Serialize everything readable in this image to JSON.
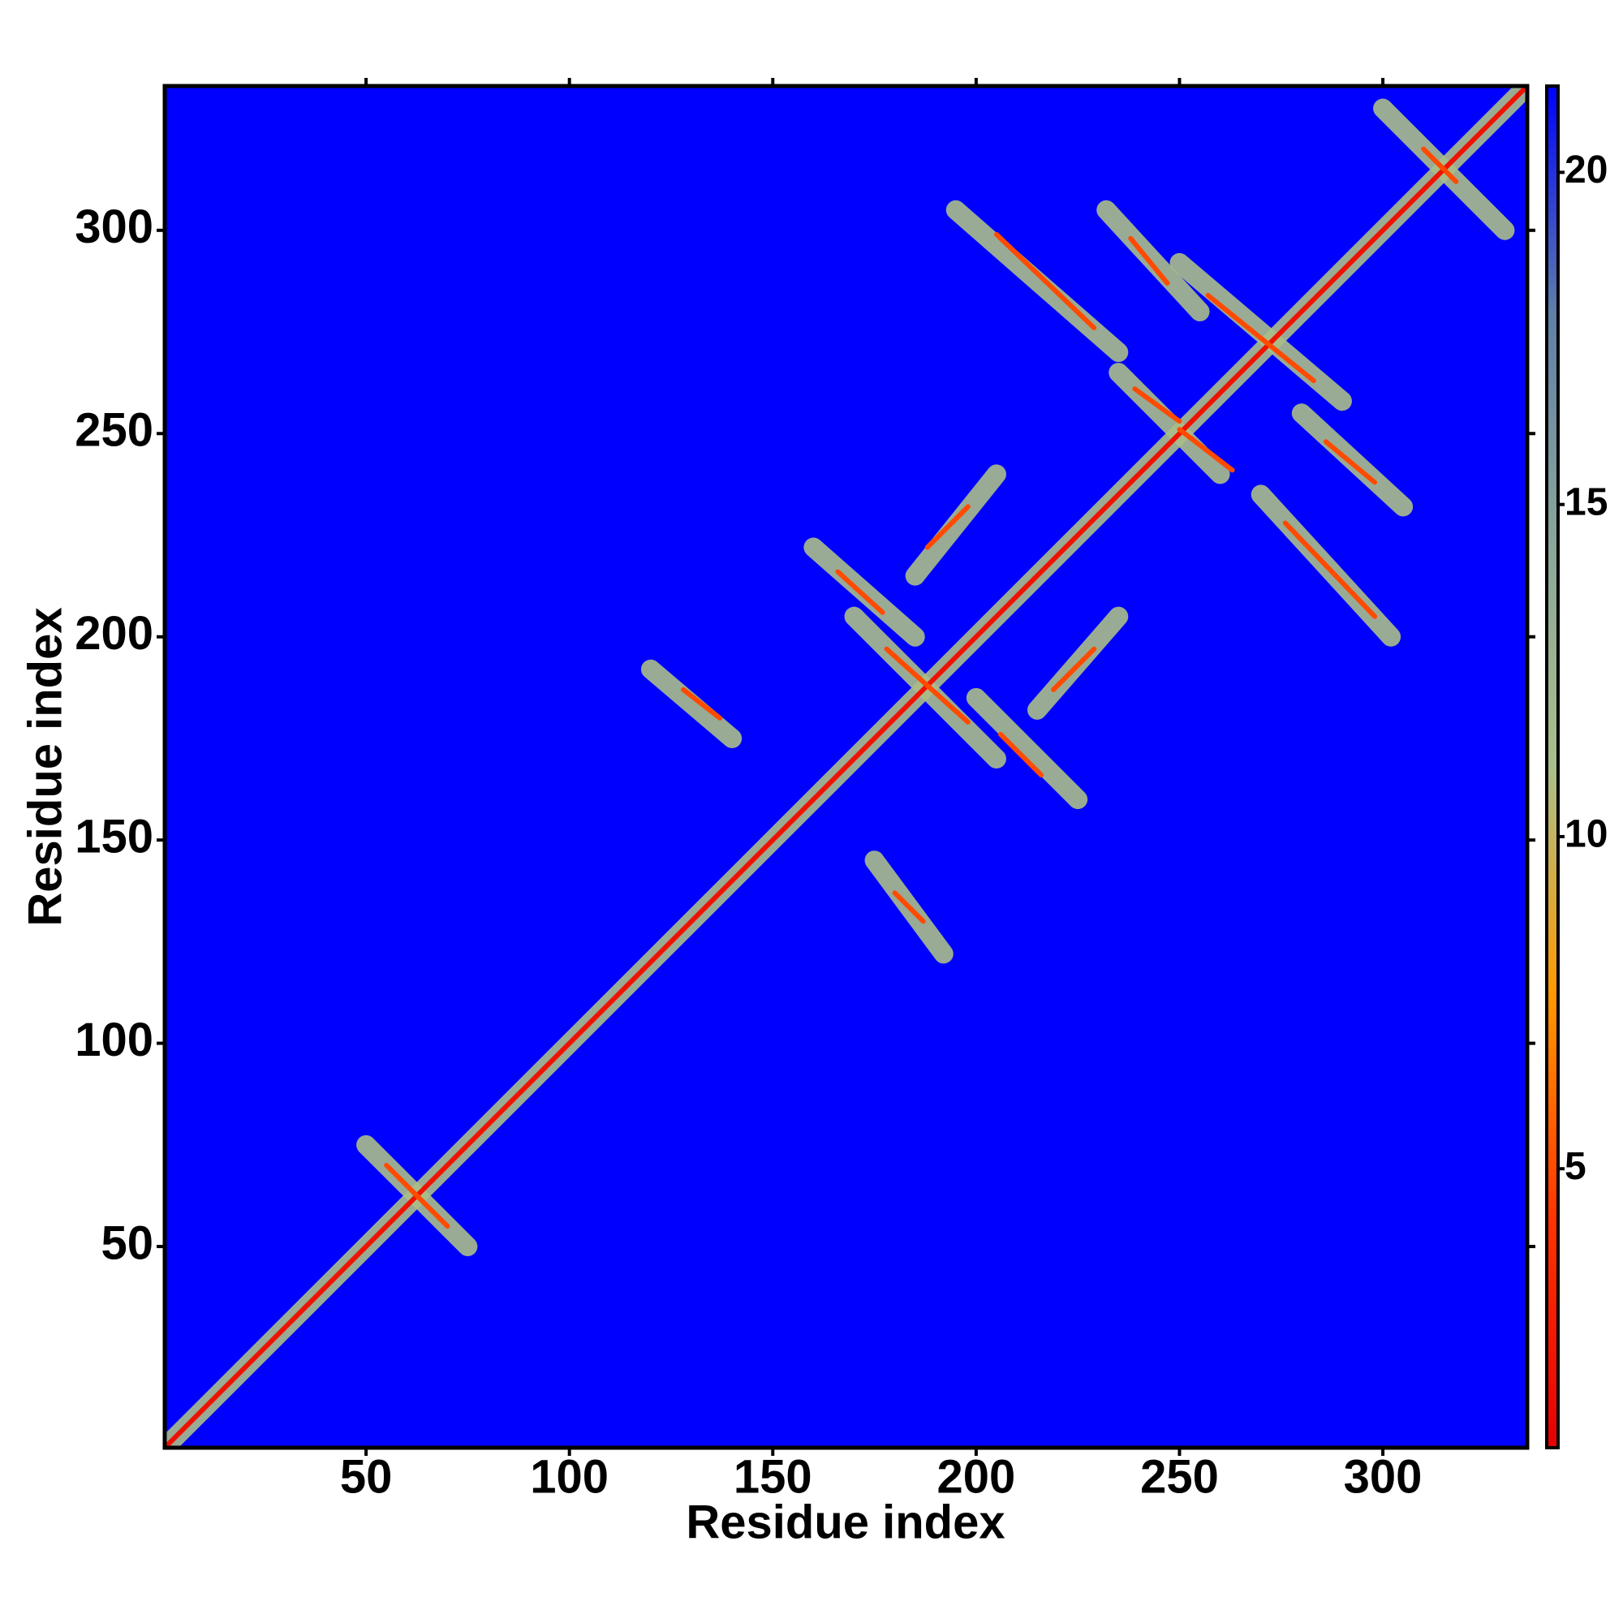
{
  "chart_data": {
    "type": "heatmap",
    "xlabel": "Residue index",
    "ylabel": "Residue index",
    "xlim": [
      0.5,
      335.5
    ],
    "ylim": [
      0.5,
      335.5
    ],
    "xticks": [
      50,
      100,
      150,
      200,
      250,
      300
    ],
    "yticks": [
      50,
      100,
      150,
      200,
      250,
      300
    ],
    "clim": [
      0.8,
      21.3
    ],
    "cticks": [
      5,
      10,
      15,
      20
    ],
    "colors": [
      "#e60000",
      "#ff3300",
      "#ff9900",
      "#a9bf8a",
      "#8aa69a",
      "#5f7fa8",
      "#0000ff"
    ],
    "background_value": 21.3,
    "bands": [
      {
        "x": [
          1,
          335
        ],
        "y": [
          1,
          335
        ],
        "value": 11
      },
      {
        "x": [
          50,
          75
        ],
        "y": [
          75,
          50
        ],
        "value": 11
      },
      {
        "x": [
          120,
          140
        ],
        "y": [
          192,
          175
        ],
        "value": 11
      },
      {
        "x": [
          175,
          192
        ],
        "y": [
          145,
          122
        ],
        "value": 11
      },
      {
        "x": [
          160,
          185
        ],
        "y": [
          222,
          200
        ],
        "value": 11
      },
      {
        "x": [
          170,
          205
        ],
        "y": [
          205,
          170
        ],
        "value": 11
      },
      {
        "x": [
          185,
          205
        ],
        "y": [
          215,
          240
        ],
        "value": 11
      },
      {
        "x": [
          200,
          225
        ],
        "y": [
          185,
          160
        ],
        "value": 11
      },
      {
        "x": [
          195,
          235
        ],
        "y": [
          305,
          270
        ],
        "value": 11
      },
      {
        "x": [
          232,
          255
        ],
        "y": [
          305,
          280
        ],
        "value": 11
      },
      {
        "x": [
          235,
          260
        ],
        "y": [
          265,
          240
        ],
        "value": 11
      },
      {
        "x": [
          215,
          235
        ],
        "y": [
          182,
          205
        ],
        "value": 11
      },
      {
        "x": [
          250,
          290
        ],
        "y": [
          292,
          258
        ],
        "value": 11
      },
      {
        "x": [
          270,
          302
        ],
        "y": [
          235,
          200
        ],
        "value": 11
      },
      {
        "x": [
          280,
          305
        ],
        "y": [
          255,
          232
        ],
        "value": 11
      },
      {
        "x": [
          300,
          330
        ],
        "y": [
          330,
          300
        ],
        "value": 11
      }
    ],
    "strands": [
      {
        "x": [
          1,
          335
        ],
        "y": [
          1,
          335
        ],
        "value": 2
      },
      {
        "x": [
          55,
          70
        ],
        "y": [
          70,
          55
        ],
        "value": 5
      },
      {
        "x": [
          128,
          137
        ],
        "y": [
          187,
          180
        ],
        "value": 5
      },
      {
        "x": [
          180,
          187
        ],
        "y": [
          137,
          130
        ],
        "value": 5
      },
      {
        "x": [
          166,
          177
        ],
        "y": [
          216,
          206
        ],
        "value": 5
      },
      {
        "x": [
          178,
          198
        ],
        "y": [
          197,
          179
        ],
        "value": 5
      },
      {
        "x": [
          188,
          198
        ],
        "y": [
          222,
          232
        ],
        "value": 5
      },
      {
        "x": [
          206,
          216
        ],
        "y": [
          176,
          166
        ],
        "value": 5
      },
      {
        "x": [
          205,
          229
        ],
        "y": [
          299,
          276
        ],
        "value": 5
      },
      {
        "x": [
          238,
          247
        ],
        "y": [
          298,
          287
        ],
        "value": 5
      },
      {
        "x": [
          239,
          250
        ],
        "y": [
          261,
          253
        ],
        "value": 5
      },
      {
        "x": [
          219,
          229
        ],
        "y": [
          187,
          197
        ],
        "value": 5
      },
      {
        "x": [
          257,
          283
        ],
        "y": [
          284,
          263
        ],
        "value": 5
      },
      {
        "x": [
          276,
          298
        ],
        "y": [
          228,
          205
        ],
        "value": 5
      },
      {
        "x": [
          286,
          298
        ],
        "y": [
          248,
          238
        ],
        "value": 5
      },
      {
        "x": [
          250,
          263
        ],
        "y": [
          251,
          241
        ],
        "value": 5
      },
      {
        "x": [
          310,
          318
        ],
        "y": [
          320,
          312
        ],
        "value": 5
      }
    ]
  }
}
